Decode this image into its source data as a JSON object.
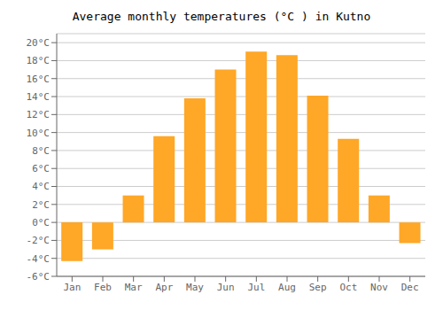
{
  "chart_data": {
    "type": "bar",
    "title": "Average monthly temperatures (°C ) in Kutno",
    "categories": [
      "Jan",
      "Feb",
      "Mar",
      "Apr",
      "May",
      "Jun",
      "Jul",
      "Aug",
      "Sep",
      "Oct",
      "Nov",
      "Dec"
    ],
    "values": [
      -4.3,
      -3.0,
      3.0,
      9.6,
      13.8,
      17.0,
      19.0,
      18.6,
      14.1,
      9.3,
      3.0,
      -2.3
    ],
    "color": "#FFA726",
    "ylim": [
      -6,
      21
    ],
    "yticks": [
      {
        "value": -6,
        "label": "-6°C"
      },
      {
        "value": -4,
        "label": "-4°C"
      },
      {
        "value": -2,
        "label": "-2°C"
      },
      {
        "value": 0,
        "label": "0°C"
      },
      {
        "value": 2,
        "label": "2°C"
      },
      {
        "value": 4,
        "label": "4°C"
      },
      {
        "value": 6,
        "label": "6°C"
      },
      {
        "value": 8,
        "label": "8°C"
      },
      {
        "value": 10,
        "label": "10°C"
      },
      {
        "value": 12,
        "label": "12°C"
      },
      {
        "value": 14,
        "label": "14°C"
      },
      {
        "value": 16,
        "label": "16°C"
      },
      {
        "value": 18,
        "label": "18°C"
      },
      {
        "value": 20,
        "label": "20°C"
      }
    ],
    "grid": true
  }
}
